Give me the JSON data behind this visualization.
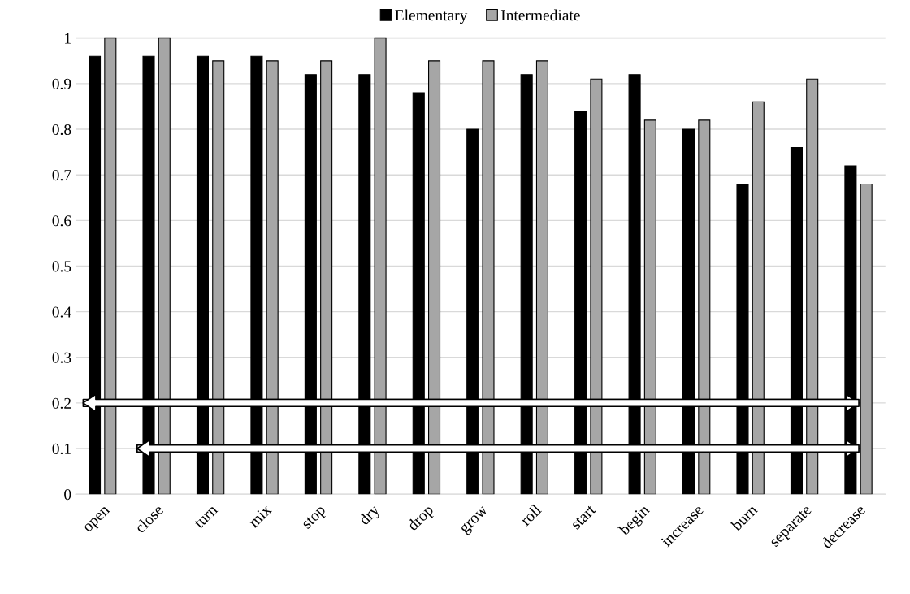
{
  "chart_data": {
    "type": "bar",
    "categories": [
      "open",
      "close",
      "turn",
      "mix",
      "stop",
      "dry",
      "drop",
      "grow",
      "roll",
      "start",
      "begin",
      "increase",
      "burn",
      "separate",
      "decrease"
    ],
    "series": [
      {
        "name": "Elementary",
        "color": "#000000",
        "values": [
          0.96,
          0.96,
          0.96,
          0.96,
          0.92,
          0.92,
          0.88,
          0.8,
          0.92,
          0.84,
          0.92,
          0.8,
          0.68,
          0.76,
          0.72
        ]
      },
      {
        "name": "Intermediate",
        "color": "#a6a6a6",
        "values": [
          1,
          1,
          0.95,
          0.95,
          0.95,
          1,
          0.95,
          0.95,
          0.95,
          0.91,
          0.82,
          0.82,
          0.86,
          0.91,
          0.68
        ]
      }
    ],
    "ylim": [
      0,
      1
    ],
    "yticks": [
      0,
      0.1,
      0.2,
      0.3,
      0.4,
      0.5,
      0.6,
      0.7,
      0.8,
      0.9,
      1
    ],
    "grid": "y",
    "legend": "top"
  }
}
